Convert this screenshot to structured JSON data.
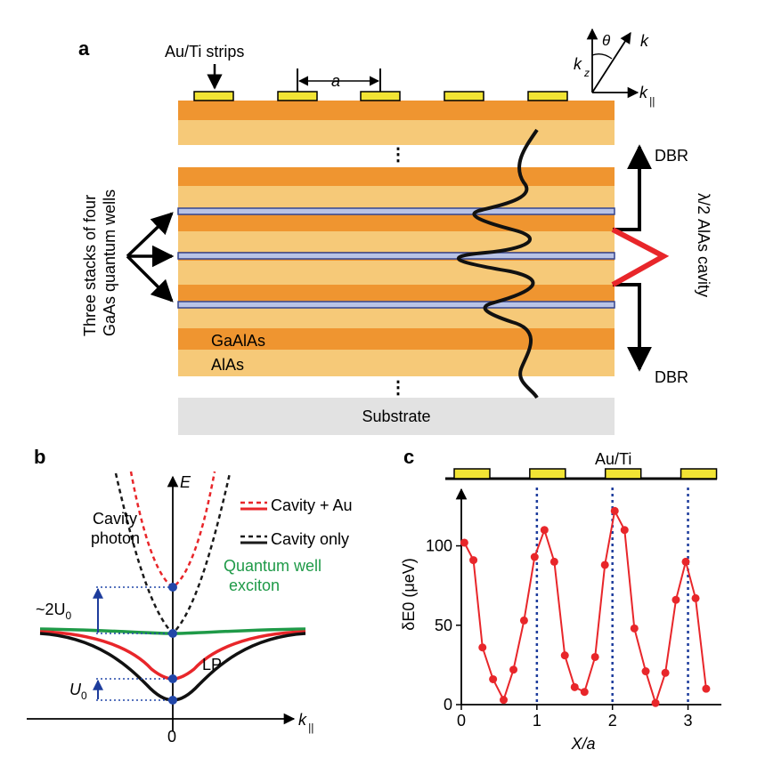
{
  "panels": {
    "a": {
      "letter": "a",
      "au_ti_strips": "Au/Ti strips",
      "period": "a",
      "three_stacks_line1": "Three stacks of four",
      "three_stacks_line2": "GaAs quantum wells",
      "gaalas": "GaAlAs",
      "alas": "AlAs",
      "substrate": "Substrate",
      "dbr_top": "DBR",
      "dbr_bottom": "DBR",
      "cavity": "λ/2 AlAs cavity",
      "ellipsis": "⋮",
      "axes": {
        "theta": "θ",
        "k": "k",
        "kz": "k",
        "kz_sub": "z",
        "kpar": "k",
        "kpar_sub": "||"
      }
    },
    "b": {
      "letter": "b",
      "E": "E",
      "cavity_photon_1": "Cavity",
      "cavity_photon_2": "photon",
      "legend_cavity_au": "Cavity + Au",
      "legend_cavity_only": "Cavity only",
      "qw_1": "Quantum well",
      "qw_2": "exciton",
      "two_u0": "~2U",
      "two_u0_sub": "0",
      "u0": "U",
      "u0_sub": "0",
      "lp": "LP",
      "zero": "0",
      "kpar": "k",
      "kpar_sub": "||",
      "colors": {
        "cavity_au": "#e8262a",
        "cavity_only": "#1a1a1a",
        "exciton": "#1f9a48",
        "marker": "#2146a8"
      }
    },
    "c": {
      "letter": "c",
      "strip_label": "Au/Ti",
      "strip_positions_x_over_a": [
        0.0,
        1.0,
        2.0,
        3.0
      ],
      "colors": {
        "line": "#e8262a",
        "guide": "#1d3c9c",
        "strip": "#f2e434"
      }
    }
  },
  "chart_data": {
    "type": "line",
    "xlabel": "X/a",
    "ylabel": "δE0 (μeV)",
    "xlim": [
      0,
      3.3
    ],
    "ylim": [
      0,
      130
    ],
    "xticks": [
      "0",
      "1",
      "2",
      "3"
    ],
    "yticks": [
      "0",
      "50",
      "100"
    ],
    "vertical_guides_x": [
      1,
      2,
      3
    ],
    "series": [
      {
        "x": [
          0.04,
          0.16,
          0.28,
          0.42,
          0.56,
          0.69,
          0.83,
          0.97,
          1.1,
          1.23,
          1.37,
          1.5,
          1.63,
          1.77,
          1.9,
          2.03,
          2.16,
          2.29,
          2.44,
          2.57,
          2.7,
          2.84,
          2.97,
          3.1,
          3.24
        ],
        "y": [
          102,
          91,
          36,
          16,
          3,
          22,
          53,
          93,
          110,
          90,
          31,
          11,
          8,
          30,
          88,
          122,
          110,
          48,
          21,
          1,
          20,
          66,
          90,
          67,
          10
        ]
      }
    ]
  }
}
